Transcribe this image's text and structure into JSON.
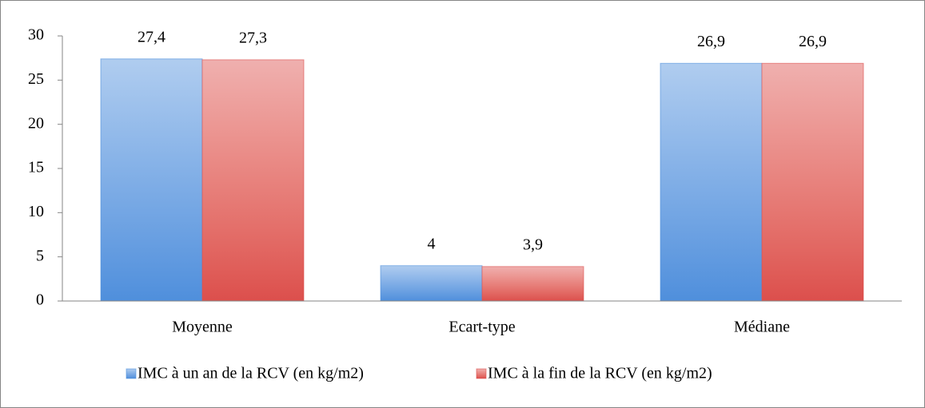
{
  "chart_data": {
    "type": "bar",
    "categories": [
      "Moyenne",
      "Ecart-type",
      "Médiane"
    ],
    "series": [
      {
        "name": "IMC à un an de la RCV (en kg/m2)",
        "color": "#4f8fdc",
        "values": [
          27.4,
          4,
          26.9
        ],
        "value_labels": [
          "27,4",
          "4",
          "26,9"
        ]
      },
      {
        "name": "IMC à la fin de la RCV (en kg/m2)",
        "color": "#dc4f4c",
        "values": [
          27.3,
          3.9,
          26.9
        ],
        "value_labels": [
          "27,3",
          "3,9",
          "26,9"
        ]
      }
    ],
    "ylim": [
      0,
      30
    ],
    "yticks": [
      0,
      5,
      10,
      15,
      20,
      25,
      30
    ],
    "grid": false,
    "legend": "bottom"
  }
}
